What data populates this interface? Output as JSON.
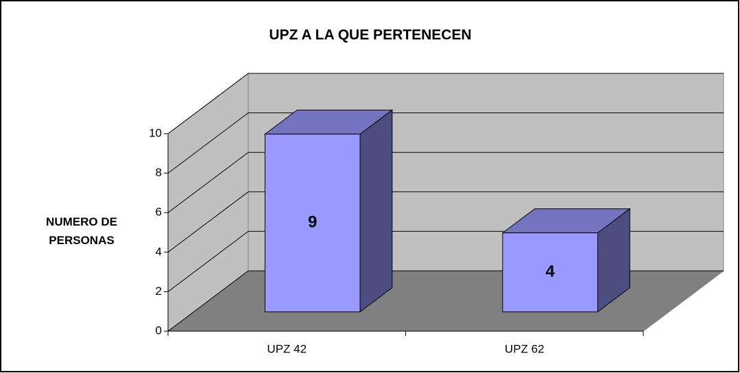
{
  "chart_data": {
    "type": "bar3d",
    "title": "UPZ A LA QUE PERTENECEN",
    "y_label": "NUMERO DE PERSONAS",
    "categories": [
      "UPZ 42",
      "UPZ 62"
    ],
    "values": [
      9,
      4
    ],
    "ylim": [
      0,
      10
    ],
    "yticks": [
      0,
      2,
      4,
      6,
      8,
      10
    ],
    "grid": true,
    "color": "#9999ff"
  }
}
